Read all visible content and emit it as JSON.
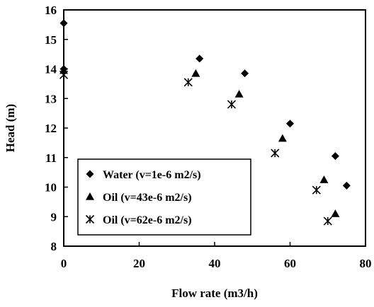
{
  "chart_data": {
    "type": "scatter",
    "title": "",
    "xlabel": "Flow rate (m3/h)",
    "ylabel": "Head (m)",
    "xlim": [
      0,
      80
    ],
    "ylim": [
      8,
      16
    ],
    "xticks": [
      "0",
      "20",
      "40",
      "60",
      "80"
    ],
    "yticks": [
      "8",
      "9",
      "10",
      "11",
      "12",
      "13",
      "14",
      "15",
      "16"
    ],
    "grid": false,
    "legend_position": "bottom-left",
    "series": [
      {
        "name": "Water (v=1e-6 m2/s)",
        "marker": "diamond",
        "x": [
          0,
          0,
          36,
          48,
          60,
          72,
          75
        ],
        "y": [
          15.55,
          14.0,
          14.35,
          13.85,
          12.15,
          11.05,
          10.05
        ]
      },
      {
        "name": "Oil (v=43e-6 m2/s)",
        "marker": "triangle",
        "x": [
          0,
          35,
          46.5,
          58,
          69,
          72
        ],
        "y": [
          13.95,
          13.85,
          13.15,
          11.65,
          10.25,
          9.1
        ]
      },
      {
        "name": "Oil (v=62e-6 m2/s)",
        "marker": "asterisk",
        "x": [
          0,
          33,
          44.5,
          56,
          67,
          70
        ],
        "y": [
          13.8,
          13.55,
          12.8,
          11.15,
          9.9,
          8.85
        ]
      }
    ]
  }
}
